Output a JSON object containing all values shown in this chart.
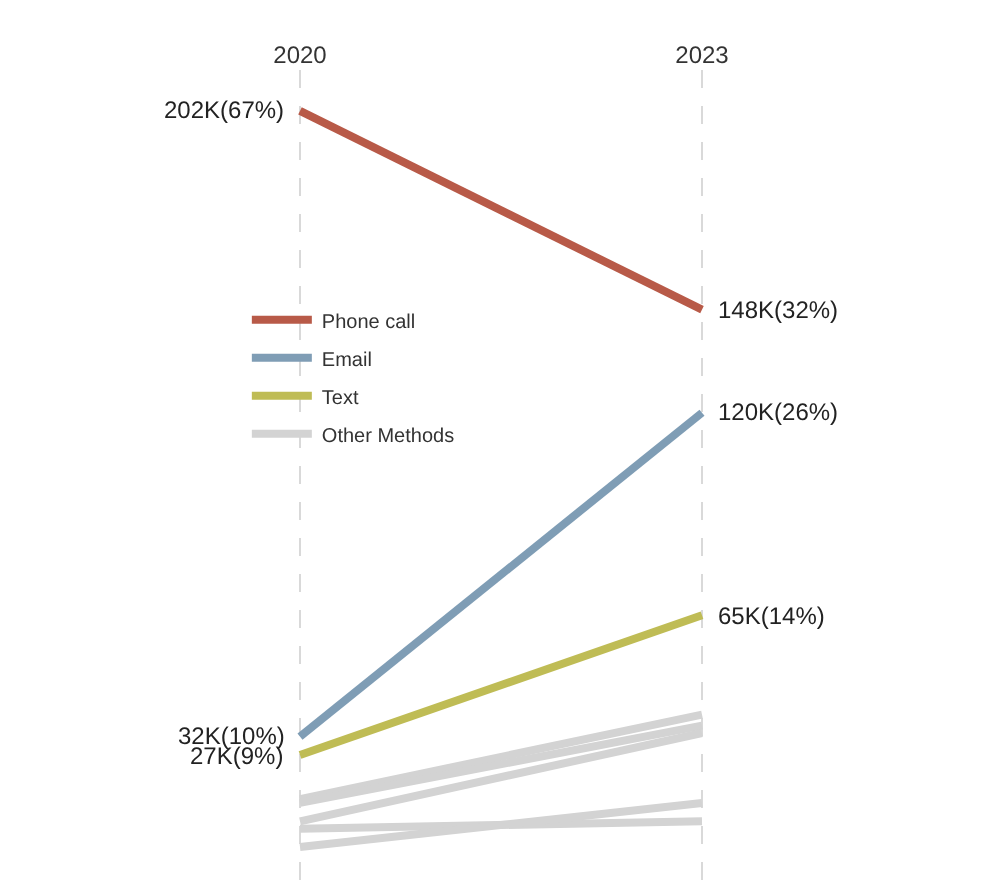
{
  "chart_data": {
    "type": "line",
    "categories": [
      "2020",
      "2023"
    ],
    "series": [
      {
        "name": "Phone call",
        "color": "#b85a48",
        "values": [
          202000,
          148000
        ],
        "value_labels": [
          "202K(67%)",
          "148K(32%)"
        ]
      },
      {
        "name": "Email",
        "color": "#7f9db5",
        "values": [
          32000,
          120000
        ],
        "value_labels": [
          "32K(10%)",
          "120K(26%)"
        ]
      },
      {
        "name": "Text",
        "color": "#bfbc55",
        "values": [
          27000,
          65000
        ],
        "value_labels": [
          "27K(9%)",
          "65K(14%)"
        ]
      },
      {
        "name": "Other Methods",
        "color": "#d3d3d3",
        "values": [
          15000,
          38000
        ]
      },
      {
        "color": "#d3d3d3",
        "values": [
          14000,
          35000
        ]
      },
      {
        "color": "#d3d3d3",
        "values": [
          9000,
          33000
        ]
      },
      {
        "color": "#d3d3d3",
        "values": [
          7000,
          9000
        ]
      },
      {
        "color": "#d3d3d3",
        "values": [
          2000,
          14000
        ]
      }
    ],
    "grid": "x",
    "legend": "left",
    "line_style": "solid",
    "tick_labels": "x"
  }
}
